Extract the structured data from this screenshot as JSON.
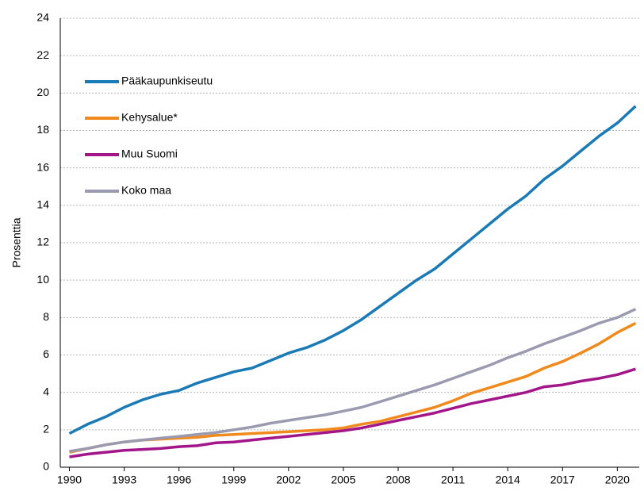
{
  "chart_data": {
    "type": "line",
    "y_label": "Prosenttia",
    "x": [
      1990,
      1991,
      1992,
      1993,
      1994,
      1995,
      1996,
      1997,
      1998,
      1999,
      2000,
      2001,
      2002,
      2003,
      2004,
      2005,
      2006,
      2007,
      2008,
      2009,
      2010,
      2011,
      2012,
      2013,
      2014,
      2015,
      2016,
      2017,
      2018,
      2019,
      2020,
      2021
    ],
    "series": [
      {
        "name": "Pääkaupunkiseutu",
        "color": "#1a7ab5",
        "values": [
          1.8,
          2.3,
          2.7,
          3.2,
          3.6,
          3.9,
          4.1,
          4.5,
          4.8,
          5.1,
          5.3,
          5.7,
          6.1,
          6.4,
          6.8,
          7.3,
          7.9,
          8.6,
          9.3,
          10.0,
          10.6,
          11.4,
          12.2,
          13.0,
          13.8,
          14.5,
          15.4,
          16.1,
          16.9,
          17.7,
          18.4,
          19.3
        ]
      },
      {
        "name": "Kehysalue*",
        "color": "#f08a1d",
        "values": [
          0.8,
          1.0,
          1.2,
          1.35,
          1.45,
          1.5,
          1.55,
          1.6,
          1.7,
          1.75,
          1.8,
          1.85,
          1.9,
          1.95,
          2.0,
          2.1,
          2.3,
          2.45,
          2.7,
          2.95,
          3.2,
          3.55,
          3.95,
          4.25,
          4.55,
          4.85,
          5.3,
          5.65,
          6.1,
          6.6,
          7.2,
          7.7
        ]
      },
      {
        "name": "Muu Suomi",
        "color": "#a2168a",
        "values": [
          0.55,
          0.7,
          0.8,
          0.9,
          0.95,
          1.0,
          1.1,
          1.15,
          1.3,
          1.35,
          1.45,
          1.55,
          1.65,
          1.75,
          1.85,
          1.95,
          2.1,
          2.3,
          2.5,
          2.7,
          2.9,
          3.15,
          3.4,
          3.6,
          3.8,
          4.0,
          4.3,
          4.4,
          4.6,
          4.75,
          4.95,
          5.25
        ]
      },
      {
        "name": "Koko maa",
        "color": "#9a9ab0",
        "values": [
          0.85,
          1.0,
          1.2,
          1.35,
          1.45,
          1.55,
          1.65,
          1.75,
          1.85,
          2.0,
          2.15,
          2.35,
          2.5,
          2.65,
          2.8,
          3.0,
          3.2,
          3.5,
          3.8,
          4.1,
          4.4,
          4.75,
          5.1,
          5.45,
          5.85,
          6.2,
          6.6,
          6.95,
          7.3,
          7.7,
          8.0,
          8.45
        ]
      }
    ],
    "xlim": [
      1989.5,
      2021.2
    ],
    "xticks": [
      1990,
      1993,
      1996,
      1999,
      2002,
      2005,
      2008,
      2011,
      2014,
      2017,
      2020
    ],
    "ylim": [
      0,
      24
    ],
    "yticks": [
      0,
      2,
      4,
      6,
      8,
      10,
      12,
      14,
      16,
      18,
      20,
      22,
      24
    ],
    "grid": true,
    "legend": "upper left"
  }
}
